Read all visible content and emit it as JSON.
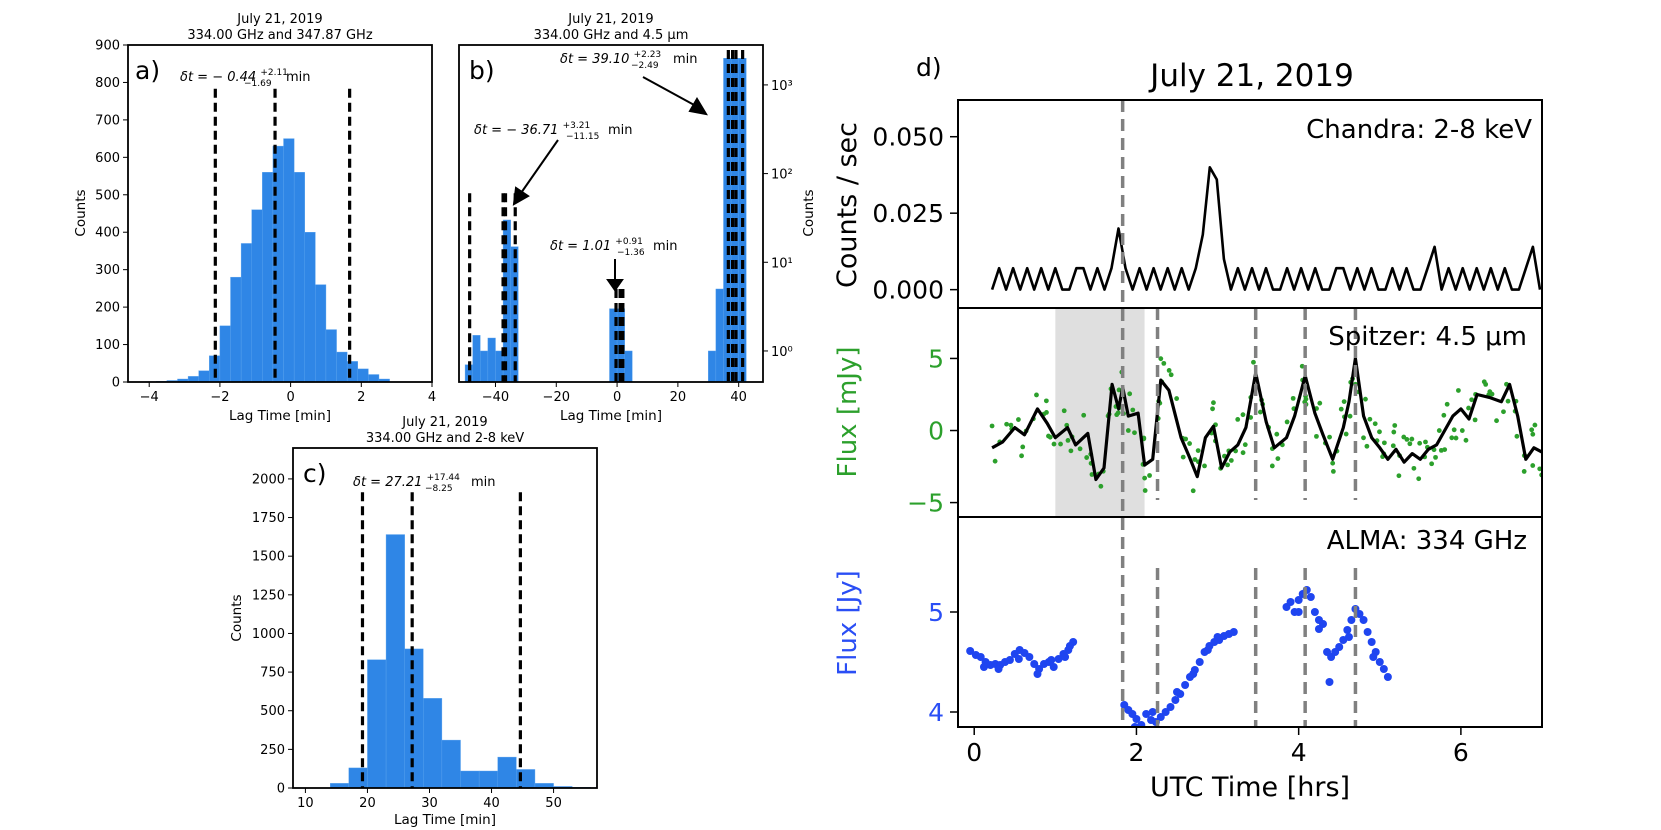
{
  "chart_data": [
    {
      "id": "a",
      "type": "bar",
      "panel_label": "a)",
      "title_lines": [
        "July 21, 2019",
        "334.00 GHz and 347.87 GHz"
      ],
      "xlabel": "Lag Time [min]",
      "ylabel": "Counts",
      "xlim": [
        -4.6,
        4
      ],
      "ylim": [
        0,
        900
      ],
      "xticks": [
        -4,
        -2,
        0,
        2,
        4
      ],
      "yticks": [
        0,
        100,
        200,
        300,
        400,
        500,
        600,
        700,
        800,
        900
      ],
      "bar_color": "#2f86e6",
      "bin_edges": [
        -4.1,
        -3.8,
        -3.5,
        -3.2,
        -2.9,
        -2.6,
        -2.3,
        -2.0,
        -1.7,
        -1.4,
        -1.1,
        -0.8,
        -0.5,
        -0.2,
        0.1,
        0.4,
        0.7,
        1.0,
        1.3,
        1.6,
        1.9,
        2.2,
        2.5,
        2.8
      ],
      "counts": [
        1,
        2,
        4,
        8,
        15,
        30,
        70,
        150,
        280,
        370,
        460,
        560,
        630,
        650,
        560,
        400,
        260,
        140,
        80,
        55,
        35,
        20,
        8
      ],
      "vlines": [
        -2.13,
        -0.44,
        1.67
      ],
      "annotations": [
        {
          "main": "δt = − 0.44",
          "sup": "+2.11",
          "sub": "−1.69",
          "unit": "min"
        }
      ]
    },
    {
      "id": "b",
      "type": "bar",
      "panel_label": "b)",
      "title_lines": [
        "July 21, 2019",
        "334.00 GHz and 4.5 μm"
      ],
      "xlabel": "Lag Time [min]",
      "ylabel": "Counts",
      "ylabel_side": "right",
      "yscale": "log",
      "xlim": [
        -52,
        48
      ],
      "ylim_log10": [
        -0.35,
        3.45
      ],
      "xticks": [
        -40,
        -20,
        0,
        20,
        40
      ],
      "ytick_exponents": [
        0,
        1,
        2,
        3
      ],
      "ytick_labels": [
        "10⁰",
        "10¹",
        "10²",
        "10³"
      ],
      "bar_color": "#2f86e6",
      "bins": [
        {
          "x0": -50,
          "x1": -47.5,
          "c": 0.7
        },
        {
          "x0": -47.5,
          "x1": -45,
          "c": 1.5
        },
        {
          "x0": -45,
          "x1": -42.5,
          "c": 1.0
        },
        {
          "x0": -42.5,
          "x1": -40,
          "c": 1.4
        },
        {
          "x0": -40,
          "x1": -37.5,
          "c": 1.0
        },
        {
          "x0": -37.5,
          "x1": -35,
          "c": 30
        },
        {
          "x0": -35,
          "x1": -32.5,
          "c": 15
        },
        {
          "x0": -2.5,
          "x1": 0,
          "c": 3
        },
        {
          "x0": 0,
          "x1": 2.5,
          "c": 3
        },
        {
          "x0": 2.5,
          "x1": 5,
          "c": 1.0
        },
        {
          "x0": 30,
          "x1": 32.5,
          "c": 1.0
        },
        {
          "x0": 32.5,
          "x1": 35,
          "c": 5
        },
        {
          "x0": 35,
          "x1": 37.5,
          "c": 2000
        },
        {
          "x0": 37.5,
          "x1": 40,
          "c": 2000
        },
        {
          "x0": 40,
          "x1": 42.5,
          "c": 2000
        }
      ],
      "vlines": [
        -48.5,
        -37.5,
        -36.7,
        -33.5,
        -0.35,
        1.0,
        1.9,
        36.6,
        38.0,
        39.1,
        41.3
      ],
      "annotations": [
        {
          "main": "δt = 39.10",
          "sup": "+2.23",
          "sub": "−2.49",
          "unit": "min"
        },
        {
          "main": "δt = − 36.71",
          "sup": "+3.21",
          "sub": "−11.15",
          "unit": "min"
        },
        {
          "main": "δt = 1.01",
          "sup": "+0.91",
          "sub": "−1.36",
          "unit": "min"
        }
      ]
    },
    {
      "id": "c",
      "type": "bar",
      "panel_label": "c)",
      "title_lines": [
        "July 21, 2019",
        "334.00 GHz and 2-8 keV"
      ],
      "xlabel": "Lag Time [min]",
      "ylabel": "Counts",
      "xlim": [
        8,
        57
      ],
      "ylim": [
        0,
        2200
      ],
      "xticks": [
        10,
        20,
        30,
        40,
        50
      ],
      "yticks": [
        0,
        250,
        500,
        750,
        1000,
        1250,
        1500,
        1750,
        2000
      ],
      "bar_color": "#2f86e6",
      "bin_edges": [
        14,
        17,
        20,
        23,
        26,
        29,
        32,
        35,
        38,
        41,
        44,
        47,
        50,
        53,
        56
      ],
      "counts": [
        30,
        130,
        830,
        1640,
        900,
        580,
        310,
        110,
        110,
        200,
        120,
        30,
        10,
        5
      ],
      "vlines": [
        19.2,
        27.21,
        44.65
      ],
      "annotations": [
        {
          "main": "δt = 27.21",
          "sup": "+17.44",
          "sub": "−8.25",
          "unit": "min"
        }
      ]
    },
    {
      "id": "d",
      "type": "line",
      "panel_label": "d)",
      "title": "July 21, 2019",
      "xlabel": "UTC Time [hrs]",
      "xlim": [
        -0.2,
        7.0
      ],
      "xticks": [
        0,
        2,
        4,
        6
      ],
      "time_markers": [
        1.83,
        2.26,
        3.47,
        4.08,
        4.7
      ],
      "spitzer_shade": [
        1.0,
        2.1
      ],
      "chandra": {
        "label": "Chandra: 2-8 keV",
        "ylabel": "Counts / sec",
        "ylim": [
          -0.006,
          0.062
        ],
        "yticks": [
          0.0,
          0.025,
          0.05
        ],
        "ytick_labels": [
          "0.000",
          "0.025",
          "0.050"
        ],
        "color": "#000000",
        "t_start": 0.22,
        "t_step": 0.0866,
        "rate": [
          0.0,
          0.007,
          0.0,
          0.007,
          0.0,
          0.007,
          0.0,
          0.007,
          0.0,
          0.007,
          0.0,
          0.0,
          0.007,
          0.007,
          0.0,
          0.007,
          0.0,
          0.007,
          0.02,
          0.007,
          0.0,
          0.007,
          0.0,
          0.007,
          0.0,
          0.007,
          0.0,
          0.007,
          0.0,
          0.007,
          0.018,
          0.04,
          0.036,
          0.01,
          0.0,
          0.007,
          0.0,
          0.007,
          0.0,
          0.007,
          0.0,
          0.0,
          0.007,
          0.0,
          0.007,
          0.0,
          0.007,
          0.0,
          0.0,
          0.007,
          0.007,
          0.0,
          0.007,
          0.0,
          0.007,
          0.0,
          0.0,
          0.007,
          0.0,
          0.007,
          0.0,
          0.0,
          0.007,
          0.014,
          0.0,
          0.007,
          0.0,
          0.007,
          0.0,
          0.007,
          0.0,
          0.007,
          0.0,
          0.007,
          0.0,
          0.0,
          0.007,
          0.014,
          0.0,
          0.007,
          0.0,
          0.007,
          0.0,
          0.007,
          0.0,
          0.007,
          0.0,
          0.007,
          0.0,
          0.007,
          0.0,
          0.0,
          0.007,
          0.0,
          0.007,
          0.0,
          0.007,
          0.0,
          0.007,
          0.0,
          0.007,
          0.0,
          0.007,
          0.0,
          0.007,
          0.014,
          0.007,
          0.0,
          0.007,
          0.0,
          0.007,
          0.0,
          0.007,
          0.0,
          0.007,
          0.0,
          0.007,
          0.0,
          0.007,
          0.0,
          0.007,
          0.01,
          0.007,
          0.0,
          0.007,
          0.0,
          0.007,
          0.0,
          0.007,
          0.0,
          0.007,
          0.0,
          0.007,
          0.0,
          0.007,
          0.0,
          0.007,
          0.0,
          0.007,
          0.0,
          0.007,
          0.0,
          0.007,
          0.0,
          0.007,
          0.0,
          0.007,
          0.0,
          0.007,
          0.0,
          0.007,
          0.0,
          0.007,
          0.0,
          0.007,
          0.0,
          0.007,
          0.0,
          0.007,
          0.0,
          0.007,
          0.0,
          0.007,
          0.0,
          0.007,
          0.0,
          0.007,
          0.0,
          0.007,
          0.0,
          0.007,
          0.0,
          0.007,
          0.0,
          0.007,
          0.0,
          0.007,
          0.0,
          0.007,
          0.0,
          0.007,
          0.0,
          0.007,
          0.0,
          0.007
        ]
      },
      "spitzer": {
        "label": "Spitzer: 4.5 μm",
        "ylabel": "Flux [mJy]",
        "ylabel_color": "#2ca02c",
        "ylim": [
          -6,
          8.5
        ],
        "yticks": [
          -5,
          0,
          5
        ],
        "ytick_labels": [
          "−5",
          "0",
          "5"
        ],
        "points_color": "#2ca02c",
        "line_color": "#000000",
        "smooth": [
          [
            0.22,
            -1.2
          ],
          [
            0.35,
            -0.8
          ],
          [
            0.5,
            0.2
          ],
          [
            0.62,
            -0.3
          ],
          [
            0.78,
            1.5
          ],
          [
            0.9,
            0.5
          ],
          [
            1.0,
            -0.5
          ],
          [
            1.15,
            0.2
          ],
          [
            1.25,
            -1.0
          ],
          [
            1.4,
            -0.2
          ],
          [
            1.5,
            -3.4
          ],
          [
            1.6,
            -2.6
          ],
          [
            1.7,
            3.2
          ],
          [
            1.78,
            1.5
          ],
          [
            1.83,
            3.0
          ],
          [
            1.9,
            1.0
          ],
          [
            2.02,
            1.2
          ],
          [
            2.1,
            -2.4
          ],
          [
            2.2,
            -2.0
          ],
          [
            2.3,
            3.5
          ],
          [
            2.4,
            2.8
          ],
          [
            2.55,
            -0.5
          ],
          [
            2.65,
            -1.8
          ],
          [
            2.75,
            -3.2
          ],
          [
            2.85,
            -0.5
          ],
          [
            2.95,
            0.3
          ],
          [
            3.05,
            -2.6
          ],
          [
            3.15,
            -1.5
          ],
          [
            3.25,
            -1.0
          ],
          [
            3.35,
            0.2
          ],
          [
            3.47,
            4.0
          ],
          [
            3.6,
            0.6
          ],
          [
            3.7,
            -1.2
          ],
          [
            3.85,
            -0.5
          ],
          [
            3.95,
            1.0
          ],
          [
            4.08,
            3.8
          ],
          [
            4.2,
            1.2
          ],
          [
            4.3,
            -0.3
          ],
          [
            4.42,
            -2.0
          ],
          [
            4.55,
            0.2
          ],
          [
            4.62,
            2.0
          ],
          [
            4.7,
            5.0
          ],
          [
            4.8,
            1.0
          ],
          [
            4.9,
            -0.5
          ],
          [
            5.0,
            -1.2
          ],
          [
            5.1,
            -2.0
          ],
          [
            5.2,
            -1.3
          ],
          [
            5.3,
            -2.2
          ],
          [
            5.4,
            -1.6
          ],
          [
            5.5,
            -2.0
          ],
          [
            5.6,
            -1.3
          ],
          [
            5.7,
            -1.0
          ],
          [
            5.8,
            0.0
          ],
          [
            5.9,
            1.0
          ],
          [
            6.0,
            1.5
          ],
          [
            6.1,
            0.8
          ],
          [
            6.2,
            2.5
          ],
          [
            6.35,
            2.3
          ],
          [
            6.5,
            2.0
          ],
          [
            6.6,
            3.2
          ],
          [
            6.7,
            1.0
          ],
          [
            6.8,
            -2.0
          ],
          [
            6.9,
            -1.2
          ],
          [
            7.0,
            -1.5
          ]
        ],
        "scatter_spread": 1.8,
        "scatter_per_segment": 3
      },
      "alma": {
        "label": "ALMA: 334 GHz",
        "ylabel": "Flux [Jy]",
        "ylabel_color": "#2a4ef5",
        "ylim": [
          3.85,
          5.95
        ],
        "yticks": [
          4,
          5
        ],
        "ytick_labels": [
          "4",
          "5"
        ],
        "points_color": "#1f45f0",
        "segments": [
          [
            [
              -0.05,
              4.61
            ],
            [
              0.02,
              4.57
            ],
            [
              0.08,
              4.55
            ],
            [
              0.14,
              4.5
            ],
            [
              0.2,
              4.47
            ],
            [
              0.26,
              4.48
            ],
            [
              0.32,
              4.47
            ],
            [
              0.38,
              4.5
            ],
            [
              0.44,
              4.52
            ],
            [
              0.5,
              4.58
            ],
            [
              0.56,
              4.62
            ],
            [
              0.62,
              4.59
            ],
            [
              0.68,
              4.55
            ],
            [
              0.74,
              4.48
            ],
            [
              0.8,
              4.43
            ],
            [
              0.86,
              4.48
            ],
            [
              0.92,
              4.5
            ],
            [
              0.98,
              4.45
            ],
            [
              1.04,
              4.53
            ],
            [
              1.1,
              4.58
            ],
            [
              1.16,
              4.62
            ],
            [
              1.22,
              4.7
            ],
            [
              0.12,
              4.45
            ],
            [
              0.3,
              4.43
            ],
            [
              0.55,
              4.53
            ],
            [
              0.78,
              4.38
            ],
            [
              0.95,
              4.52
            ],
            [
              1.12,
              4.55
            ],
            [
              1.18,
              4.66
            ]
          ],
          [
            [
              1.85,
              4.07
            ],
            [
              1.9,
              4.02
            ],
            [
              1.95,
              3.98
            ],
            [
              2.0,
              3.93
            ],
            [
              2.06,
              3.87
            ],
            [
              2.12,
              3.98
            ],
            [
              2.18,
              3.92
            ],
            [
              2.24,
              3.9
            ],
            [
              2.3,
              3.95
            ],
            [
              2.36,
              4.0
            ],
            [
              2.42,
              4.05
            ],
            [
              2.48,
              4.12
            ],
            [
              2.54,
              4.18
            ],
            [
              2.6,
              4.27
            ],
            [
              2.66,
              4.35
            ],
            [
              2.72,
              4.42
            ],
            [
              2.78,
              4.5
            ],
            [
              2.84,
              4.6
            ],
            [
              2.9,
              4.66
            ],
            [
              2.96,
              4.7
            ],
            [
              3.02,
              4.72
            ],
            [
              3.08,
              4.76
            ],
            [
              3.14,
              4.78
            ],
            [
              3.2,
              4.8
            ],
            [
              1.98,
              3.85
            ],
            [
              2.2,
              4.0
            ],
            [
              2.5,
              4.2
            ],
            [
              2.7,
              4.38
            ],
            [
              2.88,
              4.62
            ],
            [
              3.0,
              4.75
            ]
          ],
          [
            [
              3.85,
              5.05
            ],
            [
              3.9,
              5.1
            ],
            [
              3.95,
              5.0
            ],
            [
              4.0,
              5.12
            ],
            [
              4.05,
              5.18
            ],
            [
              4.1,
              5.22
            ],
            [
              4.15,
              5.15
            ],
            [
              4.2,
              5.0
            ],
            [
              4.25,
              4.92
            ],
            [
              4.3,
              4.88
            ],
            [
              4.35,
              4.6
            ],
            [
              4.4,
              4.55
            ],
            [
              4.45,
              4.6
            ],
            [
              4.5,
              4.65
            ],
            [
              4.55,
              4.72
            ],
            [
              4.6,
              4.82
            ],
            [
              4.65,
              4.92
            ],
            [
              4.7,
              5.03
            ],
            [
              4.75,
              4.98
            ],
            [
              4.8,
              4.92
            ],
            [
              4.85,
              4.8
            ],
            [
              4.9,
              4.7
            ],
            [
              4.95,
              4.6
            ],
            [
              5.0,
              4.5
            ],
            [
              5.05,
              4.43
            ],
            [
              5.1,
              4.35
            ],
            [
              4.38,
              4.3
            ],
            [
              4.0,
              5.0
            ],
            [
              4.25,
              4.83
            ],
            [
              4.62,
              4.75
            ],
            [
              4.92,
              4.55
            ]
          ]
        ]
      }
    }
  ]
}
